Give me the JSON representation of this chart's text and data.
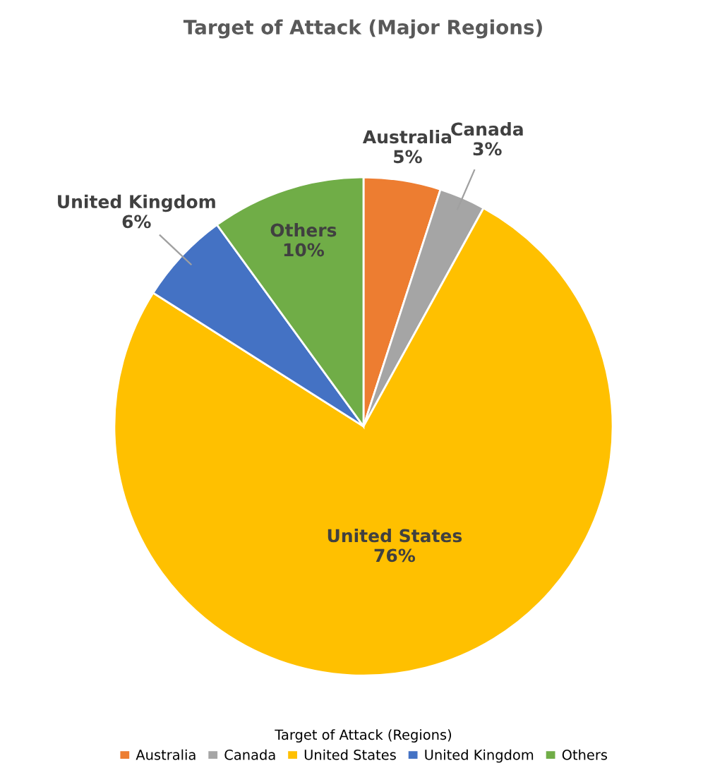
{
  "chart_data": {
    "type": "pie",
    "title": "Target of Attack (Major Regions)",
    "legend_title": "Target of Attack (Regions)",
    "categories": [
      "Australia",
      "Canada",
      "United States",
      "United Kingdom",
      "Others"
    ],
    "values": [
      5,
      3,
      76,
      6,
      10
    ],
    "colors": [
      "#ed7d31",
      "#a5a5a5",
      "#ffc000",
      "#4472c4",
      "#70ad47"
    ],
    "value_labels": [
      "5%",
      "3%",
      "76%",
      "6%",
      "10%"
    ],
    "legend": "bottom"
  }
}
